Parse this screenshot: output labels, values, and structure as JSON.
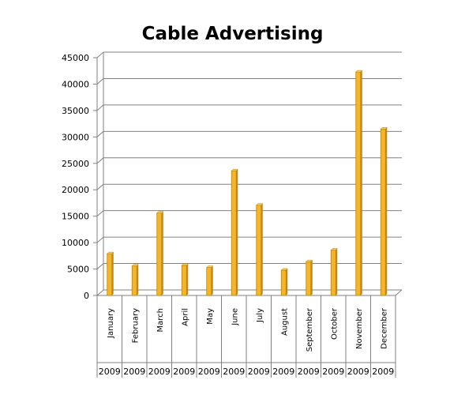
{
  "chart_data": {
    "type": "bar",
    "title": "Cable Advertising",
    "xlabel": "",
    "ylabel": "",
    "ylim": [
      0,
      45000
    ],
    "y_ticks": [
      "0",
      "5000",
      "10000",
      "15000",
      "20000",
      "25000",
      "30000",
      "35000",
      "40000",
      "45000"
    ],
    "categories": [
      "January",
      "February",
      "March",
      "April",
      "May",
      "June",
      "July",
      "August",
      "September",
      "October",
      "November",
      "December"
    ],
    "category_groups": [
      "2009",
      "2009",
      "2009",
      "2009",
      "2009",
      "2009",
      "2009",
      "2009",
      "2009",
      "2009",
      "2009",
      "2009"
    ],
    "values": [
      7900,
      5600,
      15600,
      5700,
      5300,
      23600,
      17100,
      4800,
      6400,
      8600,
      42300,
      31500
    ],
    "bar_color": "#f5b42a",
    "bar_edge_color": "#b8860b",
    "grid": true,
    "legend": "none"
  }
}
